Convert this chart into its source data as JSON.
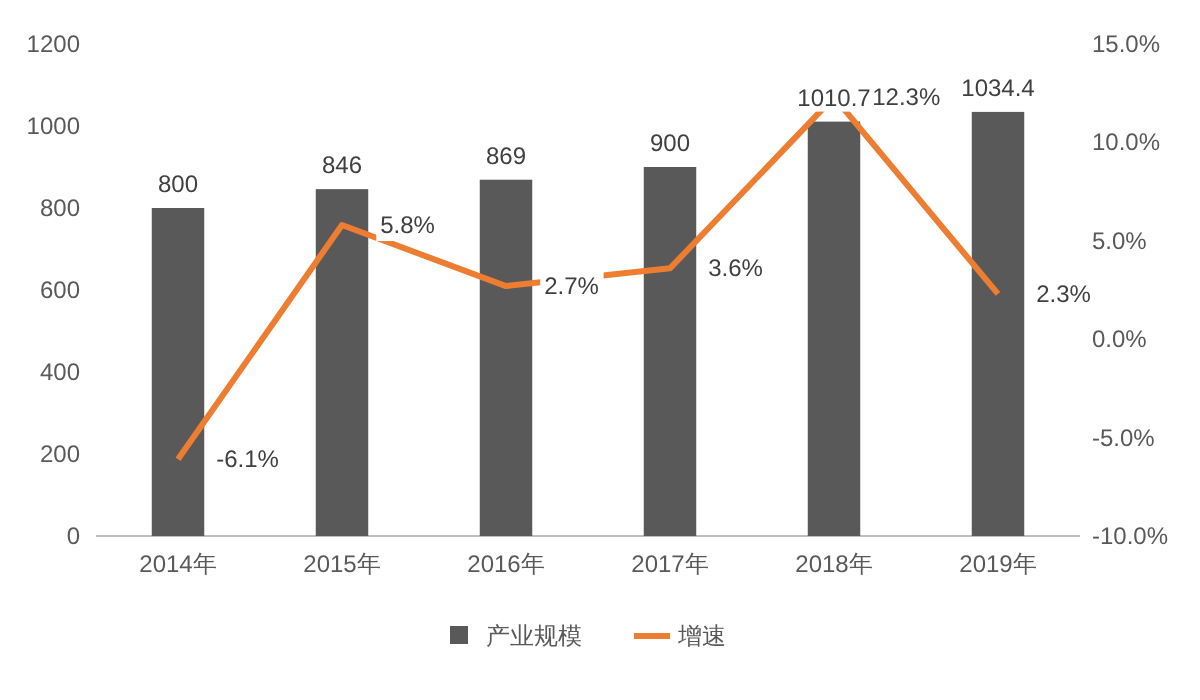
{
  "chart_data": {
    "type": "bar",
    "categories": [
      "2014年",
      "2015年",
      "2016年",
      "2017年",
      "2018年",
      "2019年"
    ],
    "series": [
      {
        "name": "产业规模",
        "color": "#595959",
        "values": [
          800,
          846,
          869,
          900,
          1010.7,
          1034.4
        ],
        "value_labels": [
          "800",
          "846",
          "869",
          "900",
          "1010.7",
          "1034.4"
        ]
      },
      {
        "name": "增速",
        "type": "line",
        "axis": "y2",
        "color": "#ed7d31",
        "marker": "none",
        "line_style": "solid",
        "values": [
          -6.1,
          5.8,
          2.7,
          3.6,
          12.3,
          2.3
        ],
        "value_labels": [
          "-6.1%",
          "5.8%",
          "2.7%",
          "3.6%",
          "12.3%",
          "2.3%"
        ]
      }
    ],
    "ylim": [
      0,
      1200
    ],
    "yticks": [
      0,
      200,
      400,
      600,
      800,
      1000,
      1200
    ],
    "y2lim": [
      -10,
      15
    ],
    "y2ticks": [
      {
        "value": -10,
        "label": "-10.0%"
      },
      {
        "value": -5,
        "label": "-5.0%"
      },
      {
        "value": 0,
        "label": "0.0%"
      },
      {
        "value": 5,
        "label": "5.0%"
      },
      {
        "value": 10,
        "label": "10.0%"
      },
      {
        "value": 15,
        "label": "15.0%"
      }
    ],
    "grid": false,
    "legend": "bottom"
  }
}
